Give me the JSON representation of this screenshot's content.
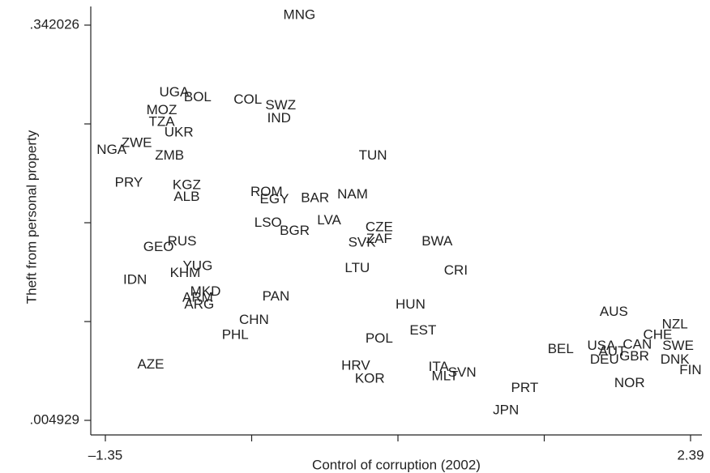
{
  "chart_data": {
    "type": "scatter",
    "xlabel": "Control of corruption (2002)",
    "ylabel": "Theft from personal property",
    "labels": [
      "MNG",
      "UGA",
      "BOL",
      "COL",
      "SWZ",
      "MOZ",
      "IND",
      "TZA",
      "UKR",
      "ZWE",
      "NGA",
      "ZMB",
      "TUN",
      "PRY",
      "KGZ",
      "ROM",
      "NAM",
      "EGY",
      "BAR",
      "ALB",
      "LVA",
      "LSO",
      "CZE",
      "BGR",
      "RUS",
      "GEO",
      "SVK",
      "ZAF",
      "BWA",
      "YUG",
      "KHM",
      "LTU",
      "CRI",
      "IDN",
      "MKD",
      "ARM",
      "ARG",
      "PAN",
      "HUN",
      "CHN",
      "AUS",
      "NZL",
      "EST",
      "PHL",
      "CHE",
      "POL",
      "BEL",
      "USA",
      "CAN",
      "SWE",
      "AUT",
      "GBR",
      "DEU",
      "DNK",
      "AZE",
      "HRV",
      "FIN",
      "ITA",
      "SVN",
      "MLT",
      "KOR",
      "NOR",
      "PRT",
      "JPN"
    ],
    "x": [
      -0.11,
      -0.91,
      -0.76,
      -0.44,
      -0.23,
      -0.99,
      -0.24,
      -0.99,
      -0.88,
      -1.15,
      -1.31,
      -0.94,
      0.36,
      -1.2,
      -0.83,
      -0.32,
      0.23,
      -0.27,
      -0.01,
      -0.83,
      0.08,
      -0.31,
      0.4,
      -0.14,
      -0.86,
      -1.01,
      0.29,
      0.4,
      0.77,
      -0.76,
      -0.84,
      0.26,
      0.89,
      -1.16,
      -0.71,
      -0.76,
      -0.75,
      -0.26,
      0.6,
      -0.4,
      1.9,
      2.29,
      0.68,
      -0.52,
      2.18,
      0.4,
      1.56,
      1.82,
      2.05,
      2.31,
      1.89,
      2.03,
      1.84,
      2.29,
      -1.06,
      0.25,
      2.39,
      0.78,
      0.93,
      0.82,
      0.34,
      2.0,
      1.33,
      1.21
    ],
    "values": [
      0.342026,
      0.276,
      0.272,
      0.27,
      0.265,
      0.261,
      0.254,
      0.251,
      0.242,
      0.233,
      0.227,
      0.222,
      0.222,
      0.199,
      0.197,
      0.191,
      0.189,
      0.185,
      0.186,
      0.187,
      0.167,
      0.165,
      0.161,
      0.158,
      0.149,
      0.144,
      0.148,
      0.151,
      0.149,
      0.128,
      0.122,
      0.126,
      0.124,
      0.116,
      0.106,
      0.101,
      0.095,
      0.102,
      0.095,
      0.082,
      0.089,
      0.078,
      0.073,
      0.069,
      0.069,
      0.066,
      0.057,
      0.06,
      0.061,
      0.06,
      0.055,
      0.051,
      0.048,
      0.048,
      0.044,
      0.043,
      0.039,
      0.042,
      0.037,
      0.034,
      0.032,
      0.028,
      0.024,
      0.004929
    ],
    "xlim": [
      -1.35,
      2.39
    ],
    "xticks": [
      {
        "value": -1.35,
        "label": "–1.35"
      },
      2.39
    ],
    "xminor_ticks": [
      -0.415,
      0.52,
      1.455
    ],
    "ylim": [
      0.004929,
      0.342026
    ],
    "yticks": [
      {
        "value": 0.004929,
        "label": ".004929"
      },
      {
        "value": 0.342026,
        "label": ".342026"
      }
    ],
    "yminor_ticks": [
      0.089203,
      0.173478,
      0.257752
    ],
    "color": "#222222"
  }
}
